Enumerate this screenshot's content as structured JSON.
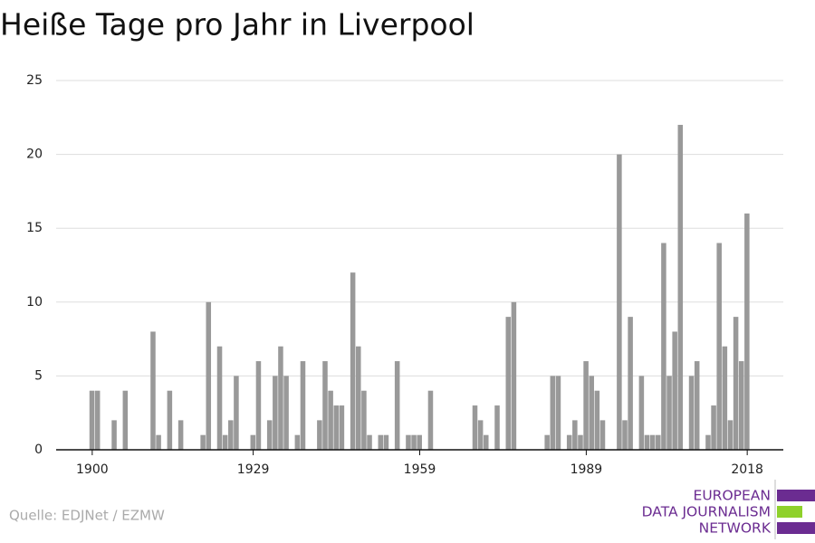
{
  "chart_data": {
    "type": "bar",
    "title": "Heiße Tage pro Jahr in Liverpool",
    "x": [
      1900,
      1901,
      1902,
      1903,
      1904,
      1905,
      1906,
      1907,
      1908,
      1909,
      1910,
      1911,
      1912,
      1913,
      1914,
      1915,
      1916,
      1917,
      1918,
      1919,
      1920,
      1921,
      1922,
      1923,
      1924,
      1925,
      1926,
      1927,
      1928,
      1929,
      1930,
      1931,
      1932,
      1933,
      1934,
      1935,
      1936,
      1937,
      1938,
      1939,
      1940,
      1941,
      1942,
      1943,
      1944,
      1945,
      1946,
      1947,
      1948,
      1949,
      1950,
      1951,
      1952,
      1953,
      1954,
      1955,
      1956,
      1957,
      1958,
      1959,
      1960,
      1961,
      1962,
      1963,
      1964,
      1965,
      1966,
      1967,
      1968,
      1969,
      1970,
      1971,
      1972,
      1973,
      1974,
      1975,
      1976,
      1977,
      1978,
      1979,
      1980,
      1981,
      1982,
      1983,
      1984,
      1985,
      1986,
      1987,
      1988,
      1989,
      1990,
      1991,
      1992,
      1993,
      1994,
      1995,
      1996,
      1997,
      1998,
      1999,
      2000,
      2001,
      2002,
      2003,
      2004,
      2005,
      2006,
      2007,
      2008,
      2009,
      2010,
      2011,
      2012,
      2013,
      2014,
      2015,
      2016,
      2017,
      2018
    ],
    "values": [
      4,
      4,
      0,
      0,
      2,
      0,
      4,
      0,
      0,
      0,
      0,
      8,
      1,
      0,
      4,
      0,
      2,
      0,
      0,
      0,
      1,
      10,
      0,
      7,
      1,
      2,
      5,
      0,
      0,
      1,
      6,
      0,
      2,
      5,
      7,
      5,
      0,
      1,
      6,
      0,
      0,
      2,
      6,
      4,
      3,
      3,
      0,
      12,
      7,
      4,
      1,
      0,
      1,
      1,
      0,
      6,
      0,
      1,
      1,
      1,
      0,
      4,
      0,
      0,
      0,
      0,
      0,
      0,
      0,
      3,
      2,
      1,
      0,
      3,
      0,
      9,
      10,
      0,
      0,
      0,
      0,
      0,
      1,
      5,
      5,
      0,
      1,
      2,
      1,
      6,
      5,
      4,
      2,
      0,
      0,
      20,
      2,
      9,
      0,
      5,
      1,
      1,
      1,
      14,
      5,
      8,
      22,
      0,
      5,
      6,
      0,
      1,
      3,
      14,
      7,
      2,
      9,
      6,
      16
    ],
    "color": "#999999",
    "xlim": [
      1893.5,
      2024.5
    ],
    "xticks": [
      1900,
      1929,
      1959,
      1989,
      2018
    ],
    "ylim": [
      0,
      25
    ],
    "yticks": [
      0,
      5,
      10,
      15,
      20,
      25
    ],
    "grid": true
  },
  "footer": {
    "source": "Quelle: EDJNet / EZMW",
    "logo": [
      "EUROPEAN",
      "DATA JOURNALISM",
      "NETWORK"
    ]
  }
}
